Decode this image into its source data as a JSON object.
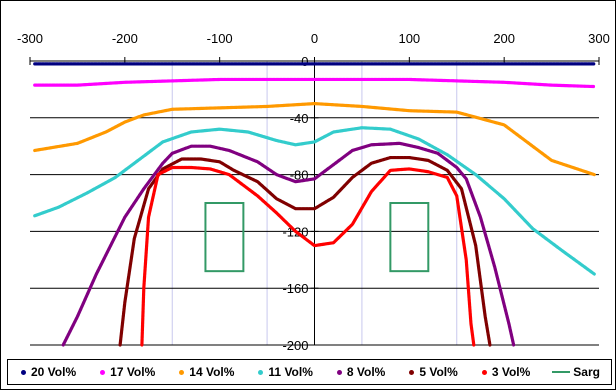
{
  "chart_data": {
    "type": "line",
    "x_ticks": [
      "-300",
      "-200",
      "-100",
      "0",
      "100",
      "200",
      "300"
    ],
    "y_ticks": [
      "0",
      "-40",
      "-80",
      "-120",
      "-160",
      "-200"
    ],
    "xlim": [
      -300,
      300
    ],
    "ylim": [
      -200,
      0
    ],
    "series": [
      {
        "name": "20 Vol%",
        "color": "#000080",
        "x": [
          -295,
          -250,
          -200,
          -150,
          -100,
          -50,
          0,
          50,
          100,
          150,
          200,
          250,
          295
        ],
        "y": [
          -2,
          -2,
          -2,
          -2,
          -2,
          -2,
          -2,
          -2,
          -2,
          -2,
          -2,
          -2,
          -2
        ]
      },
      {
        "name": "17 Vol%",
        "color": "#ff00ff",
        "x": [
          -295,
          -250,
          -200,
          -150,
          -100,
          -50,
          0,
          50,
          100,
          150,
          200,
          250,
          295
        ],
        "y": [
          -17,
          -17,
          -15,
          -14,
          -13,
          -13,
          -13,
          -13,
          -13,
          -14,
          -15,
          -17,
          -18
        ]
      },
      {
        "name": "14 Vol%",
        "color": "#ff9900",
        "x": [
          -295,
          -250,
          -220,
          -200,
          -180,
          -150,
          -100,
          -50,
          0,
          50,
          100,
          150,
          200,
          250,
          295
        ],
        "y": [
          -63,
          -58,
          -50,
          -43,
          -38,
          -34,
          -33,
          -32,
          -30,
          -32,
          -35,
          -36,
          -45,
          -70,
          -80
        ]
      },
      {
        "name": "11 Vol%",
        "color": "#33cccc",
        "x": [
          -295,
          -270,
          -240,
          -210,
          -190,
          -160,
          -130,
          -100,
          -70,
          -40,
          -20,
          0,
          20,
          50,
          80,
          110,
          140,
          170,
          200,
          230,
          260,
          295
        ],
        "y": [
          -109,
          -103,
          -93,
          -82,
          -72,
          -57,
          -50,
          -48,
          -50,
          -56,
          -59,
          -57,
          -50,
          -47,
          -48,
          -55,
          -66,
          -80,
          -97,
          -118,
          -133,
          -150
        ]
      },
      {
        "name": "8 Vol%",
        "color": "#800080",
        "x": [
          -265,
          -250,
          -230,
          -200,
          -180,
          -160,
          -150,
          -130,
          -110,
          -90,
          -60,
          -40,
          -20,
          0,
          20,
          40,
          60,
          90,
          110,
          130,
          150,
          160,
          175,
          190,
          205,
          210
        ],
        "y": [
          -200,
          -180,
          -150,
          -110,
          -90,
          -72,
          -65,
          -60,
          -60,
          -63,
          -71,
          -80,
          -85,
          -83,
          -73,
          -63,
          -59,
          -58,
          -61,
          -65,
          -75,
          -83,
          -110,
          -145,
          -185,
          -200
        ]
      },
      {
        "name": "5 Vol%",
        "color": "#800000",
        "x": [
          -205,
          -200,
          -190,
          -175,
          -160,
          -140,
          -120,
          -100,
          -85,
          -60,
          -40,
          -20,
          0,
          20,
          40,
          60,
          80,
          100,
          120,
          140,
          155,
          170,
          180,
          185
        ],
        "y": [
          -200,
          -170,
          -125,
          -90,
          -76,
          -69,
          -69,
          -71,
          -77,
          -85,
          -97,
          -104,
          -104,
          -96,
          -82,
          -72,
          -68,
          -68,
          -70,
          -77,
          -90,
          -130,
          -180,
          -200
        ]
      },
      {
        "name": "3 Vol%",
        "color": "#ff0000",
        "x": [
          -182,
          -180,
          -175,
          -165,
          -150,
          -130,
          -110,
          -90,
          -80,
          -60,
          -40,
          -20,
          0,
          20,
          40,
          60,
          80,
          100,
          120,
          140,
          150,
          160,
          165,
          168
        ],
        "y": [
          -200,
          -160,
          -110,
          -80,
          -75,
          -75,
          -76,
          -80,
          -85,
          -95,
          -107,
          -120,
          -130,
          -128,
          -115,
          -92,
          -77,
          -76,
          -78,
          -82,
          -95,
          -140,
          -185,
          -200
        ]
      }
    ],
    "rectangles": {
      "name": "Sarg",
      "color": "#339966",
      "items": [
        {
          "x": [
            -115,
            -75
          ],
          "y": [
            -100,
            -148
          ]
        },
        {
          "x": [
            80,
            120
          ],
          "y": [
            -100,
            -148
          ]
        }
      ]
    }
  },
  "legend": [
    {
      "label": "20 Vol%",
      "color": "#000080",
      "kind": "dot"
    },
    {
      "label": "17 Vol%",
      "color": "#ff00ff",
      "kind": "dot"
    },
    {
      "label": "14 Vol%",
      "color": "#ff9900",
      "kind": "dot"
    },
    {
      "label": "11 Vol%",
      "color": "#33cccc",
      "kind": "dot"
    },
    {
      "label": "8 Vol%",
      "color": "#800080",
      "kind": "dot"
    },
    {
      "label": "5 Vol%",
      "color": "#800000",
      "kind": "dot"
    },
    {
      "label": "3 Vol%",
      "color": "#ff0000",
      "kind": "dot"
    },
    {
      "label": "Sarg",
      "color": "#339966",
      "kind": "line"
    }
  ]
}
